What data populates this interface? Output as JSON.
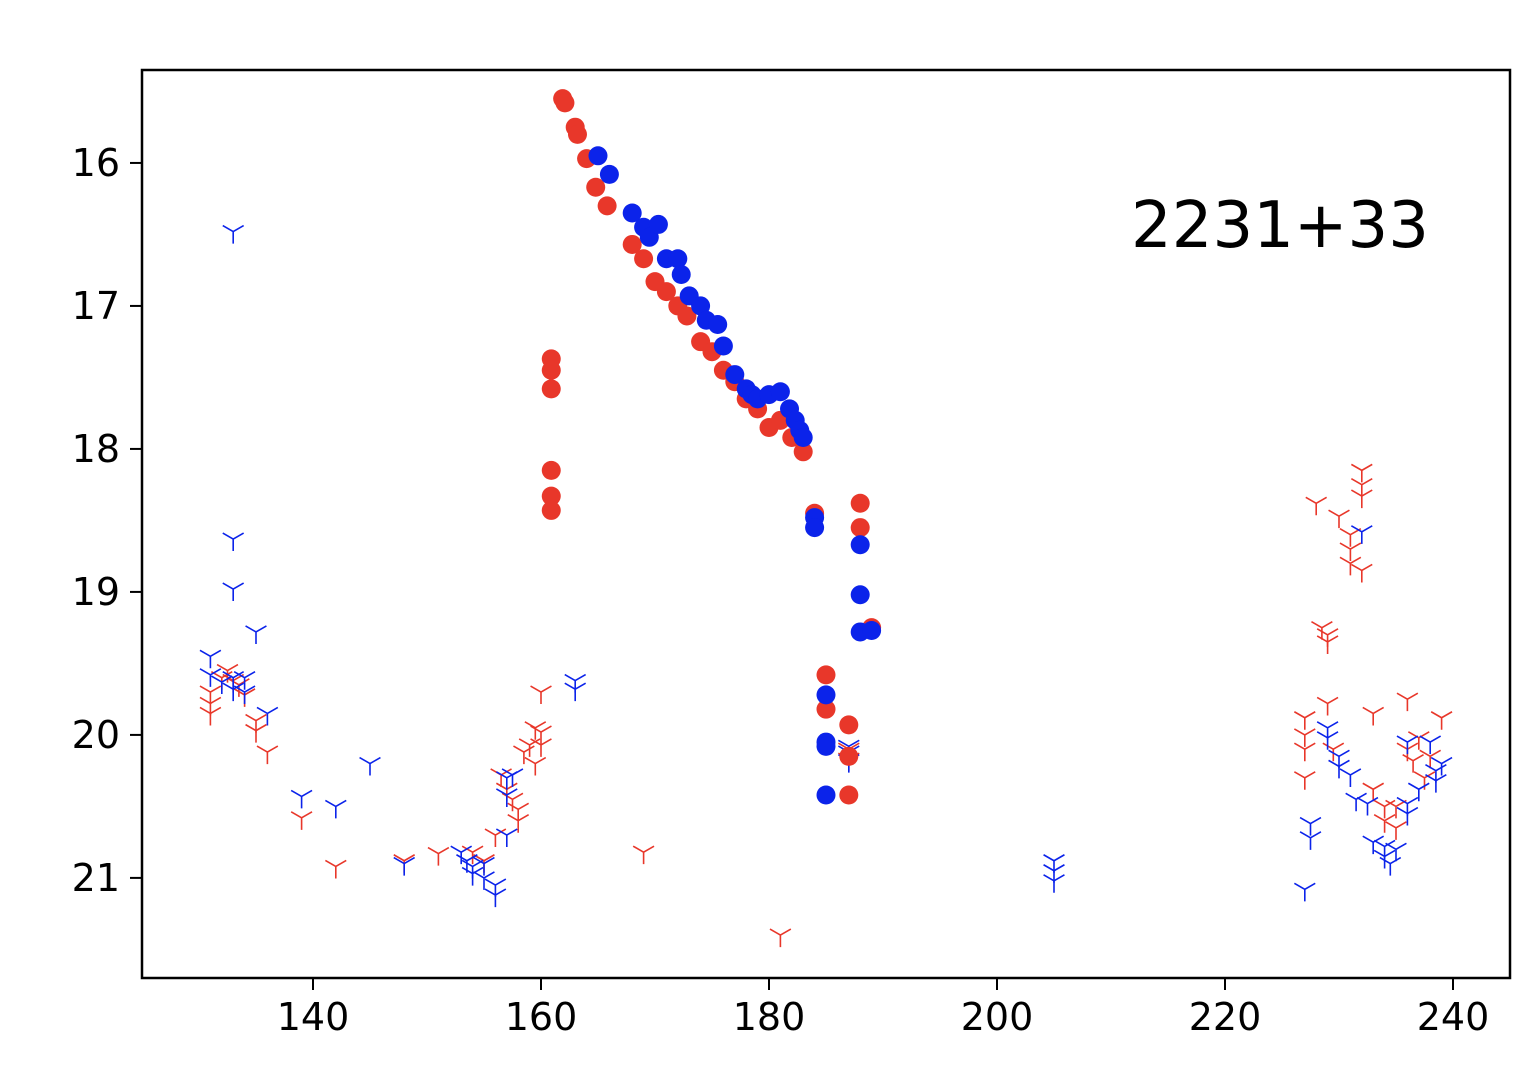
{
  "chart_data": {
    "type": "scatter",
    "title": "",
    "xlabel": "",
    "ylabel": "",
    "xlim": [
      125,
      245
    ],
    "ylim": [
      21.7,
      15.35
    ],
    "y_inverted": true,
    "grid": false,
    "xticks": [
      140,
      160,
      180,
      200,
      220,
      240
    ],
    "yticks": [
      16,
      17,
      18,
      19,
      20,
      21
    ],
    "annotation": "2231+33",
    "colors": {
      "red": "#e8372a",
      "blue": "#0b23ea"
    },
    "series": [
      {
        "color": "red",
        "marker": "circle",
        "points": [
          [
            161.9,
            15.55
          ],
          [
            162.1,
            15.58
          ],
          [
            163.0,
            15.75
          ],
          [
            163.2,
            15.8
          ],
          [
            164.0,
            15.97
          ],
          [
            164.8,
            16.17
          ],
          [
            165.8,
            16.3
          ],
          [
            168.0,
            16.57
          ],
          [
            169.0,
            16.67
          ],
          [
            170.0,
            16.83
          ],
          [
            171.0,
            16.9
          ],
          [
            172.0,
            17.0
          ],
          [
            172.8,
            17.07
          ],
          [
            174.0,
            17.25
          ],
          [
            175.0,
            17.32
          ],
          [
            176.0,
            17.45
          ],
          [
            177.0,
            17.53
          ],
          [
            178.0,
            17.65
          ],
          [
            179.0,
            17.72
          ],
          [
            180.0,
            17.85
          ],
          [
            181.0,
            17.8
          ],
          [
            182.0,
            17.92
          ],
          [
            183.0,
            18.02
          ],
          [
            160.9,
            17.37
          ],
          [
            160.9,
            17.45
          ],
          [
            160.9,
            17.58
          ],
          [
            160.9,
            18.15
          ],
          [
            160.9,
            18.33
          ],
          [
            160.9,
            18.43
          ],
          [
            184.0,
            18.45
          ],
          [
            185.0,
            19.58
          ],
          [
            185.0,
            19.82
          ],
          [
            187.0,
            19.93
          ],
          [
            187.0,
            20.15
          ],
          [
            187.0,
            20.42
          ],
          [
            188.0,
            18.38
          ],
          [
            188.0,
            18.55
          ],
          [
            189.0,
            19.25
          ]
        ]
      },
      {
        "color": "blue",
        "marker": "circle",
        "points": [
          [
            165.0,
            15.95
          ],
          [
            166.0,
            16.08
          ],
          [
            168.0,
            16.35
          ],
          [
            169.0,
            16.45
          ],
          [
            169.5,
            16.52
          ],
          [
            170.3,
            16.43
          ],
          [
            171.0,
            16.67
          ],
          [
            172.0,
            16.67
          ],
          [
            172.3,
            16.78
          ],
          [
            173.0,
            16.93
          ],
          [
            174.0,
            17.0
          ],
          [
            174.5,
            17.1
          ],
          [
            175.5,
            17.13
          ],
          [
            176.0,
            17.28
          ],
          [
            177.0,
            17.48
          ],
          [
            178.0,
            17.58
          ],
          [
            178.5,
            17.62
          ],
          [
            179.0,
            17.65
          ],
          [
            180.0,
            17.62
          ],
          [
            181.0,
            17.6
          ],
          [
            181.8,
            17.72
          ],
          [
            182.3,
            17.8
          ],
          [
            182.7,
            17.87
          ],
          [
            183.0,
            17.92
          ],
          [
            184.0,
            18.48
          ],
          [
            184.0,
            18.55
          ],
          [
            185.0,
            19.72
          ],
          [
            185.0,
            20.05
          ],
          [
            185.0,
            20.08
          ],
          [
            185.0,
            20.42
          ],
          [
            188.0,
            18.67
          ],
          [
            188.0,
            19.02
          ],
          [
            188.0,
            19.28
          ],
          [
            189.0,
            19.27
          ]
        ]
      },
      {
        "color": "red",
        "marker": "tri_down",
        "points": [
          [
            131.0,
            19.7
          ],
          [
            131.0,
            19.78
          ],
          [
            131.0,
            19.85
          ],
          [
            132.0,
            19.6
          ],
          [
            132.5,
            19.55
          ],
          [
            133.0,
            19.62
          ],
          [
            133.5,
            19.65
          ],
          [
            134.0,
            19.72
          ],
          [
            135.0,
            19.9
          ],
          [
            135.0,
            19.97
          ],
          [
            136.0,
            20.12
          ],
          [
            139.0,
            20.58
          ],
          [
            142.0,
            20.92
          ],
          [
            148.0,
            20.88
          ],
          [
            151.0,
            20.83
          ],
          [
            154.0,
            20.82
          ],
          [
            155.0,
            20.88
          ],
          [
            156.0,
            20.7
          ],
          [
            156.5,
            20.28
          ],
          [
            157.0,
            20.38
          ],
          [
            157.5,
            20.45
          ],
          [
            158.0,
            20.52
          ],
          [
            158.0,
            20.6
          ],
          [
            158.5,
            20.12
          ],
          [
            159.0,
            20.07
          ],
          [
            159.5,
            20.2
          ],
          [
            159.5,
            19.95
          ],
          [
            160.0,
            19.98
          ],
          [
            160.0,
            20.07
          ],
          [
            160.0,
            19.7
          ],
          [
            169.0,
            20.82
          ],
          [
            181.0,
            21.4
          ],
          [
            187.0,
            20.1
          ],
          [
            187.0,
            20.17
          ],
          [
            227.0,
            19.88
          ],
          [
            227.0,
            20.0
          ],
          [
            227.0,
            20.1
          ],
          [
            227.0,
            20.3
          ],
          [
            228.0,
            18.38
          ],
          [
            228.5,
            19.25
          ],
          [
            229.0,
            19.3
          ],
          [
            229.0,
            19.35
          ],
          [
            229.0,
            19.78
          ],
          [
            229.5,
            20.1
          ],
          [
            230.0,
            18.47
          ],
          [
            231.0,
            18.6
          ],
          [
            231.0,
            18.7
          ],
          [
            231.0,
            18.8
          ],
          [
            232.0,
            18.15
          ],
          [
            232.0,
            18.25
          ],
          [
            232.0,
            18.33
          ],
          [
            232.0,
            18.85
          ],
          [
            233.0,
            19.85
          ],
          [
            233.0,
            20.38
          ],
          [
            234.0,
            20.5
          ],
          [
            234.0,
            20.6
          ],
          [
            235.0,
            20.65
          ],
          [
            235.0,
            20.5
          ],
          [
            236.0,
            20.1
          ],
          [
            236.0,
            19.75
          ],
          [
            236.5,
            20.18
          ],
          [
            237.0,
            20.02
          ],
          [
            237.5,
            20.3
          ],
          [
            238.0,
            20.15
          ],
          [
            239.0,
            19.88
          ]
        ]
      },
      {
        "color": "blue",
        "marker": "tri_down",
        "points": [
          [
            133.0,
            16.48
          ],
          [
            133.0,
            18.63
          ],
          [
            133.0,
            18.98
          ],
          [
            135.0,
            19.28
          ],
          [
            131.0,
            19.45
          ],
          [
            131.0,
            19.58
          ],
          [
            132.0,
            19.63
          ],
          [
            133.0,
            19.6
          ],
          [
            133.0,
            19.68
          ],
          [
            134.0,
            19.6
          ],
          [
            134.0,
            19.7
          ],
          [
            136.0,
            19.85
          ],
          [
            139.0,
            20.43
          ],
          [
            142.0,
            20.5
          ],
          [
            145.0,
            20.2
          ],
          [
            148.0,
            20.9
          ],
          [
            153.0,
            20.82
          ],
          [
            153.5,
            20.88
          ],
          [
            154.0,
            20.92
          ],
          [
            154.0,
            20.97
          ],
          [
            155.0,
            20.9
          ],
          [
            155.0,
            21.0
          ],
          [
            156.0,
            21.05
          ],
          [
            156.0,
            21.12
          ],
          [
            157.0,
            20.7
          ],
          [
            157.0,
            20.42
          ],
          [
            157.0,
            20.3
          ],
          [
            157.5,
            20.28
          ],
          [
            163.0,
            19.62
          ],
          [
            163.0,
            19.68
          ],
          [
            187.0,
            20.08
          ],
          [
            187.0,
            20.12
          ],
          [
            187.0,
            20.18
          ],
          [
            205.0,
            20.88
          ],
          [
            205.0,
            20.95
          ],
          [
            205.0,
            21.02
          ],
          [
            227.0,
            21.08
          ],
          [
            227.5,
            20.62
          ],
          [
            227.5,
            20.72
          ],
          [
            229.0,
            19.95
          ],
          [
            229.0,
            20.02
          ],
          [
            230.0,
            20.15
          ],
          [
            230.0,
            20.22
          ],
          [
            231.0,
            20.28
          ],
          [
            231.5,
            20.45
          ],
          [
            232.0,
            18.58
          ],
          [
            232.5,
            20.48
          ],
          [
            233.0,
            20.75
          ],
          [
            234.0,
            20.78
          ],
          [
            234.0,
            20.85
          ],
          [
            234.5,
            20.9
          ],
          [
            235.0,
            20.8
          ],
          [
            236.0,
            20.48
          ],
          [
            236.0,
            20.55
          ],
          [
            236.0,
            20.05
          ],
          [
            237.0,
            20.38
          ],
          [
            238.0,
            20.05
          ],
          [
            238.5,
            20.25
          ],
          [
            238.5,
            20.32
          ],
          [
            239.0,
            20.2
          ]
        ]
      }
    ]
  }
}
